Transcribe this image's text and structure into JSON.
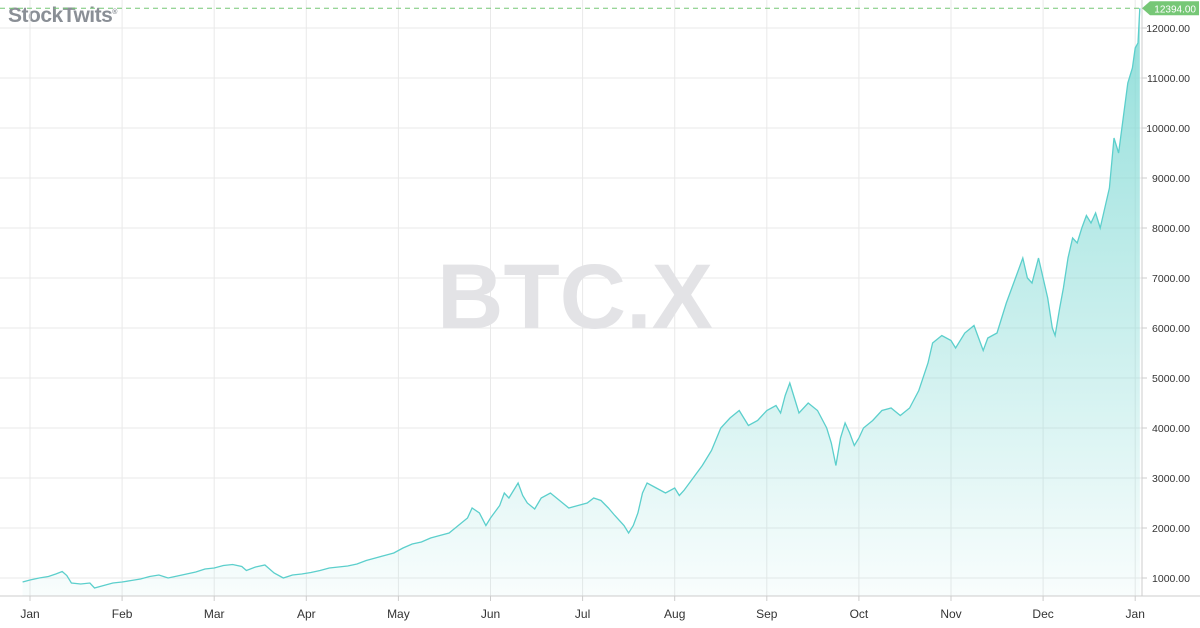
{
  "brand": {
    "name": "StockTwits",
    "mark": "®"
  },
  "watermark": "BTC.X",
  "colors": {
    "line": "#5ccfcc",
    "fill_top": "#7fd9d4",
    "grid": "#e9e9e9",
    "last_price_bg": "#76c776",
    "axis_text": "#333333",
    "brand": "#8a8f96",
    "watermark": "#e3e3e6"
  },
  "chart_data": {
    "type": "area",
    "x_ticks": [
      "Jan",
      "Feb",
      "Mar",
      "Apr",
      "May",
      "Jun",
      "Jul",
      "Aug",
      "Sep",
      "Oct",
      "Nov",
      "Dec",
      "Jan"
    ],
    "y_ticks": [
      "1000.00",
      "2000.00",
      "3000.00",
      "4000.00",
      "5000.00",
      "6000.00",
      "7000.00",
      "8000.00",
      "9000.00",
      "10000.00",
      "11000.00",
      "12000.00"
    ],
    "ylim": [
      700,
      12420
    ],
    "xlim": [
      -0.08,
      12.05
    ],
    "last_price": "12394.00",
    "last_value": 12394,
    "grid": true,
    "series": [
      {
        "values": [
          [
            -0.08,
            920
          ],
          [
            0.0,
            960
          ],
          [
            0.1,
            1000
          ],
          [
            0.2,
            1030
          ],
          [
            0.28,
            1080
          ],
          [
            0.35,
            1130
          ],
          [
            0.4,
            1050
          ],
          [
            0.45,
            900
          ],
          [
            0.55,
            880
          ],
          [
            0.65,
            900
          ],
          [
            0.7,
            800
          ],
          [
            0.8,
            850
          ],
          [
            0.9,
            900
          ],
          [
            1.0,
            920
          ],
          [
            1.1,
            950
          ],
          [
            1.2,
            980
          ],
          [
            1.3,
            1030
          ],
          [
            1.4,
            1060
          ],
          [
            1.5,
            1000
          ],
          [
            1.6,
            1040
          ],
          [
            1.7,
            1080
          ],
          [
            1.8,
            1120
          ],
          [
            1.9,
            1180
          ],
          [
            2.0,
            1200
          ],
          [
            2.1,
            1250
          ],
          [
            2.2,
            1270
          ],
          [
            2.3,
            1230
          ],
          [
            2.35,
            1150
          ],
          [
            2.45,
            1220
          ],
          [
            2.55,
            1260
          ],
          [
            2.65,
            1100
          ],
          [
            2.75,
            1000
          ],
          [
            2.85,
            1060
          ],
          [
            2.95,
            1080
          ],
          [
            3.05,
            1110
          ],
          [
            3.15,
            1150
          ],
          [
            3.25,
            1200
          ],
          [
            3.35,
            1220
          ],
          [
            3.45,
            1240
          ],
          [
            3.55,
            1280
          ],
          [
            3.65,
            1350
          ],
          [
            3.75,
            1400
          ],
          [
            3.85,
            1450
          ],
          [
            3.95,
            1500
          ],
          [
            4.05,
            1600
          ],
          [
            4.15,
            1680
          ],
          [
            4.25,
            1720
          ],
          [
            4.35,
            1800
          ],
          [
            4.45,
            1850
          ],
          [
            4.55,
            1900
          ],
          [
            4.65,
            2050
          ],
          [
            4.75,
            2200
          ],
          [
            4.8,
            2400
          ],
          [
            4.88,
            2300
          ],
          [
            4.95,
            2050
          ],
          [
            5.0,
            2200
          ],
          [
            5.1,
            2450
          ],
          [
            5.15,
            2700
          ],
          [
            5.2,
            2600
          ],
          [
            5.3,
            2900
          ],
          [
            5.35,
            2650
          ],
          [
            5.4,
            2500
          ],
          [
            5.48,
            2380
          ],
          [
            5.55,
            2600
          ],
          [
            5.65,
            2700
          ],
          [
            5.75,
            2550
          ],
          [
            5.85,
            2400
          ],
          [
            5.95,
            2450
          ],
          [
            6.05,
            2500
          ],
          [
            6.12,
            2600
          ],
          [
            6.2,
            2550
          ],
          [
            6.28,
            2400
          ],
          [
            6.35,
            2250
          ],
          [
            6.45,
            2050
          ],
          [
            6.5,
            1900
          ],
          [
            6.55,
            2050
          ],
          [
            6.6,
            2300
          ],
          [
            6.65,
            2700
          ],
          [
            6.7,
            2900
          ],
          [
            6.8,
            2800
          ],
          [
            6.9,
            2700
          ],
          [
            7.0,
            2800
          ],
          [
            7.05,
            2650
          ],
          [
            7.1,
            2750
          ],
          [
            7.2,
            3000
          ],
          [
            7.3,
            3250
          ],
          [
            7.35,
            3400
          ],
          [
            7.4,
            3550
          ],
          [
            7.5,
            4000
          ],
          [
            7.6,
            4200
          ],
          [
            7.7,
            4350
          ],
          [
            7.75,
            4200
          ],
          [
            7.8,
            4050
          ],
          [
            7.9,
            4150
          ],
          [
            8.0,
            4350
          ],
          [
            8.1,
            4450
          ],
          [
            8.15,
            4300
          ],
          [
            8.2,
            4650
          ],
          [
            8.25,
            4900
          ],
          [
            8.3,
            4600
          ],
          [
            8.35,
            4300
          ],
          [
            8.45,
            4500
          ],
          [
            8.55,
            4350
          ],
          [
            8.65,
            4000
          ],
          [
            8.7,
            3700
          ],
          [
            8.75,
            3250
          ],
          [
            8.8,
            3800
          ],
          [
            8.85,
            4100
          ],
          [
            8.9,
            3900
          ],
          [
            8.95,
            3650
          ],
          [
            9.0,
            3800
          ],
          [
            9.05,
            4000
          ],
          [
            9.15,
            4150
          ],
          [
            9.25,
            4350
          ],
          [
            9.35,
            4400
          ],
          [
            9.45,
            4250
          ],
          [
            9.55,
            4400
          ],
          [
            9.65,
            4750
          ],
          [
            9.75,
            5300
          ],
          [
            9.8,
            5700
          ],
          [
            9.9,
            5850
          ],
          [
            10.0,
            5750
          ],
          [
            10.05,
            5600
          ],
          [
            10.15,
            5900
          ],
          [
            10.25,
            6050
          ],
          [
            10.3,
            5800
          ],
          [
            10.35,
            5550
          ],
          [
            10.4,
            5800
          ],
          [
            10.5,
            5900
          ],
          [
            10.6,
            6500
          ],
          [
            10.7,
            7000
          ],
          [
            10.78,
            7400
          ],
          [
            10.83,
            7000
          ],
          [
            10.88,
            6900
          ],
          [
            10.95,
            7400
          ],
          [
            11.0,
            7000
          ],
          [
            11.05,
            6600
          ],
          [
            11.1,
            6000
          ],
          [
            11.13,
            5850
          ],
          [
            11.18,
            6400
          ],
          [
            11.22,
            6800
          ],
          [
            11.27,
            7400
          ],
          [
            11.32,
            7800
          ],
          [
            11.37,
            7700
          ],
          [
            11.42,
            8000
          ],
          [
            11.47,
            8250
          ],
          [
            11.52,
            8100
          ],
          [
            11.57,
            8300
          ],
          [
            11.62,
            8000
          ],
          [
            11.67,
            8400
          ],
          [
            11.72,
            8800
          ],
          [
            11.77,
            9800
          ],
          [
            11.82,
            9500
          ],
          [
            11.87,
            10200
          ],
          [
            11.92,
            10900
          ],
          [
            11.97,
            11200
          ],
          [
            12.0,
            11600
          ],
          [
            12.03,
            11700
          ],
          [
            12.05,
            12394
          ]
        ]
      }
    ]
  }
}
